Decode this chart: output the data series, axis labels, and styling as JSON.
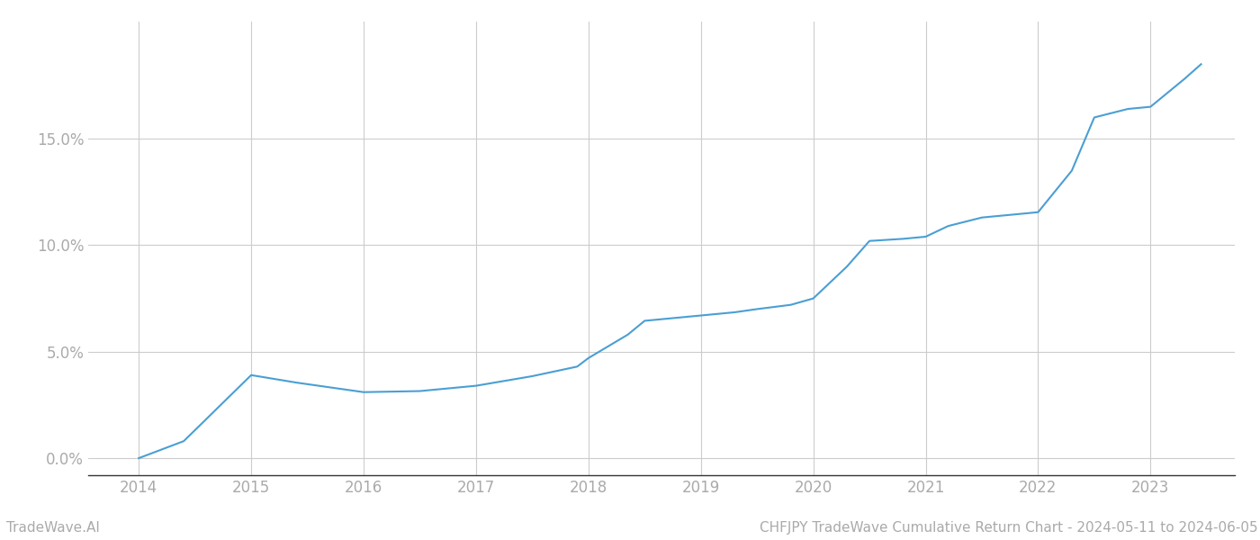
{
  "title": "",
  "footer_left": "TradeWave.AI",
  "footer_right": "CHFJPY TradeWave Cumulative Return Chart - 2024-05-11 to 2024-06-05",
  "line_color": "#4a9fd4",
  "background_color": "#ffffff",
  "grid_color": "#cccccc",
  "x_years": [
    2014.0,
    2014.4,
    2015.0,
    2015.4,
    2016.0,
    2016.5,
    2017.0,
    2017.5,
    2017.9,
    2018.0,
    2018.35,
    2018.5,
    2018.7,
    2019.0,
    2019.3,
    2019.5,
    2019.8,
    2020.0,
    2020.3,
    2020.5,
    2020.8,
    2021.0,
    2021.2,
    2021.5,
    2021.8,
    2022.0,
    2022.3,
    2022.5,
    2022.8,
    2023.0,
    2023.3,
    2023.45
  ],
  "y_values": [
    0.0,
    0.8,
    3.9,
    3.55,
    3.1,
    3.15,
    3.4,
    3.85,
    4.3,
    4.7,
    5.8,
    6.45,
    6.55,
    6.7,
    6.85,
    7.0,
    7.2,
    7.5,
    9.0,
    10.2,
    10.3,
    10.4,
    10.9,
    11.3,
    11.45,
    11.55,
    13.5,
    16.0,
    16.4,
    16.5,
    17.8,
    18.5
  ],
  "xlim": [
    2013.55,
    2023.75
  ],
  "ylim": [
    -0.8,
    20.5
  ],
  "yticks": [
    0.0,
    5.0,
    10.0,
    15.0
  ],
  "ytick_labels": [
    "0.0%",
    "5.0%",
    "10.0%",
    "15.0%"
  ],
  "xticks": [
    2014,
    2015,
    2016,
    2017,
    2018,
    2019,
    2020,
    2021,
    2022,
    2023
  ],
  "line_width": 1.5,
  "footer_fontsize": 11,
  "tick_fontsize": 12,
  "tick_color": "#aaaaaa",
  "spine_color": "#333333"
}
